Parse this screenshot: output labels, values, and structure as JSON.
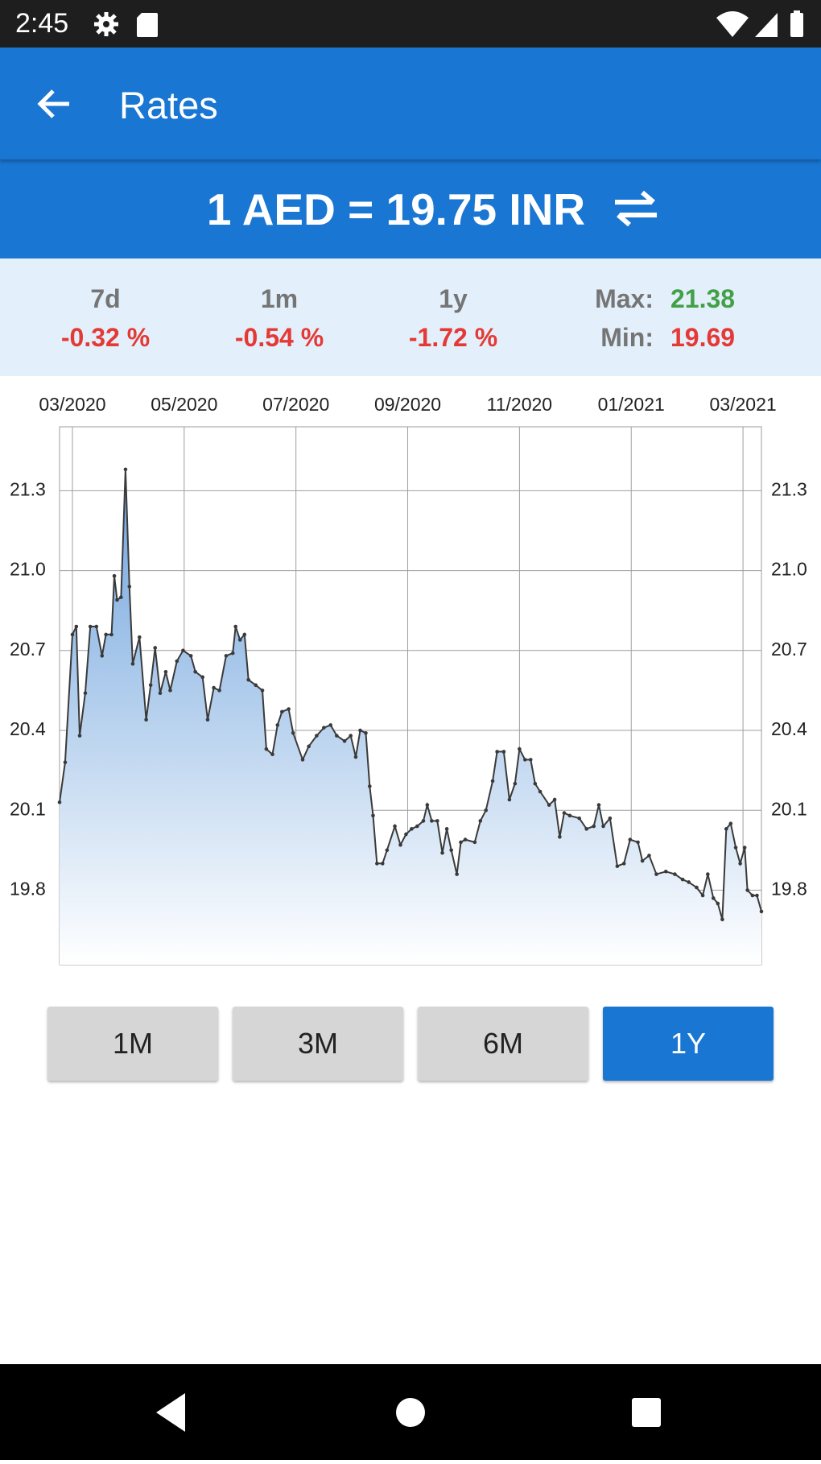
{
  "status_bar": {
    "time": "2:45"
  },
  "app_bar": {
    "title": "Rates"
  },
  "rate": {
    "text": "1 AED = 19.75 INR"
  },
  "stats": {
    "changes": [
      {
        "label": "7d",
        "value": "-0.32 %"
      },
      {
        "label": "1m",
        "value": "-0.54 %"
      },
      {
        "label": "1y",
        "value": "-1.72 %"
      }
    ],
    "max": {
      "label": "Max:",
      "value": "21.38"
    },
    "min": {
      "label": "Min:",
      "value": "19.69"
    }
  },
  "chart_data": {
    "type": "line",
    "area": true,
    "color": "#3a3a3a",
    "fill_color": "#6fa3dd",
    "grid": true,
    "xlim": [
      -0.23,
      12.33
    ],
    "xticks": [
      {
        "value": 0,
        "label": "03/2020"
      },
      {
        "value": 2,
        "label": "05/2020"
      },
      {
        "value": 4,
        "label": "07/2020"
      },
      {
        "value": 6,
        "label": "09/2020"
      },
      {
        "value": 8,
        "label": "11/2020"
      },
      {
        "value": 10,
        "label": "01/2021"
      },
      {
        "value": 12,
        "label": "03/2021"
      }
    ],
    "ylim": [
      19.52,
      21.54
    ],
    "yticks": [
      21.3,
      {
        "value": 21,
        "label": "21.0"
      },
      20.7,
      20.4,
      20.1,
      19.8
    ],
    "x": [
      -0.23,
      -0.13,
      0,
      0.07,
      0.13,
      0.23,
      0.32,
      0.43,
      0.53,
      0.6,
      0.7,
      0.75,
      0.8,
      0.87,
      0.95,
      1.02,
      1.08,
      1.2,
      1.32,
      1.4,
      1.48,
      1.57,
      1.67,
      1.75,
      1.87,
      1.98,
      2.12,
      2.2,
      2.33,
      2.42,
      2.53,
      2.63,
      2.75,
      2.87,
      2.92,
      3,
      3.08,
      3.15,
      3.28,
      3.4,
      3.47,
      3.58,
      3.67,
      3.75,
      3.87,
      3.95,
      4.12,
      4.23,
      4.37,
      4.5,
      4.62,
      4.73,
      4.87,
      4.98,
      5.07,
      5.15,
      5.25,
      5.32,
      5.38,
      5.45,
      5.55,
      5.63,
      5.77,
      5.87,
      5.97,
      6.07,
      6.17,
      6.28,
      6.35,
      6.43,
      6.53,
      6.62,
      6.7,
      6.78,
      6.88,
      6.95,
      7.03,
      7.2,
      7.3,
      7.4,
      7.52,
      7.6,
      7.72,
      7.82,
      7.92,
      8,
      8.1,
      8.2,
      8.28,
      8.37,
      8.53,
      8.63,
      8.72,
      8.8,
      8.9,
      9.07,
      9.2,
      9.33,
      9.42,
      9.5,
      9.62,
      9.75,
      9.87,
      9.98,
      10.12,
      10.2,
      10.32,
      10.45,
      10.62,
      10.78,
      10.92,
      11.03,
      11.17,
      11.28,
      11.37,
      11.47,
      11.55,
      11.63,
      11.7,
      11.78,
      11.87,
      11.95,
      12.03,
      12.08,
      12.17,
      12.25,
      12.33
    ],
    "values": [
      20.13,
      20.28,
      20.76,
      20.79,
      20.38,
      20.54,
      20.79,
      20.79,
      20.68,
      20.76,
      20.76,
      20.98,
      20.89,
      20.9,
      21.38,
      20.94,
      20.65,
      20.75,
      20.44,
      20.57,
      20.71,
      20.54,
      20.62,
      20.55,
      20.66,
      20.7,
      20.68,
      20.62,
      20.6,
      20.44,
      20.56,
      20.55,
      20.68,
      20.69,
      20.79,
      20.74,
      20.76,
      20.59,
      20.57,
      20.55,
      20.33,
      20.31,
      20.42,
      20.47,
      20.48,
      20.39,
      20.29,
      20.34,
      20.38,
      20.41,
      20.42,
      20.38,
      20.36,
      20.38,
      20.3,
      20.4,
      20.39,
      20.19,
      20.08,
      19.9,
      19.9,
      19.95,
      20.04,
      19.97,
      20.01,
      20.03,
      20.04,
      20.06,
      20.12,
      20.06,
      20.06,
      19.94,
      20.03,
      19.95,
      19.86,
      19.98,
      19.99,
      19.98,
      20.06,
      20.1,
      20.21,
      20.32,
      20.32,
      20.14,
      20.2,
      20.33,
      20.29,
      20.29,
      20.2,
      20.17,
      20.12,
      20.14,
      20.0,
      20.09,
      20.08,
      20.07,
      20.03,
      20.04,
      20.12,
      20.04,
      20.07,
      19.89,
      19.9,
      19.99,
      19.98,
      19.91,
      19.93,
      19.86,
      19.87,
      19.86,
      19.84,
      19.83,
      19.81,
      19.78,
      19.86,
      19.77,
      19.75,
      19.69,
      20.03,
      20.05,
      19.96,
      19.9,
      19.96,
      19.8,
      19.78,
      19.78,
      19.72
    ]
  },
  "range_buttons": {
    "options": [
      "1M",
      "3M",
      "6M",
      "1Y"
    ],
    "selected": "1Y"
  }
}
